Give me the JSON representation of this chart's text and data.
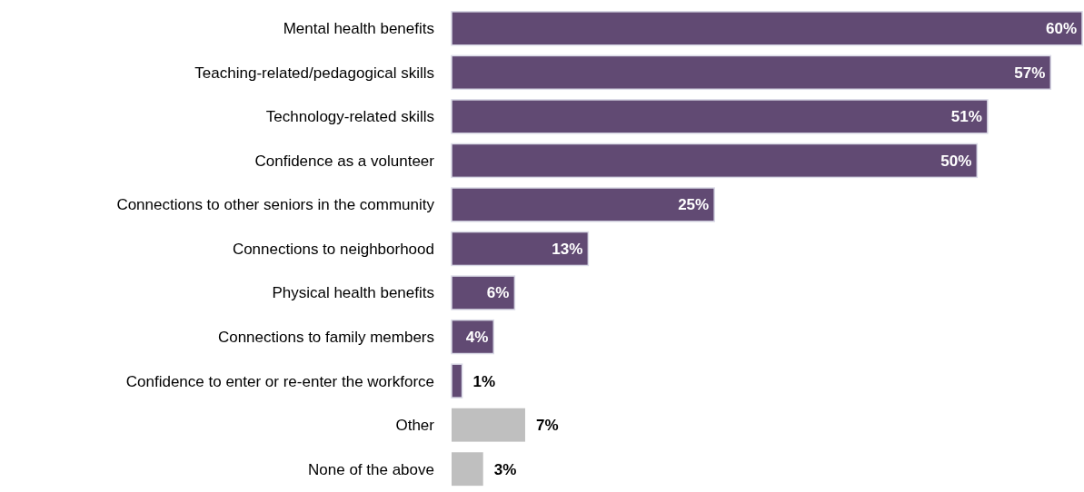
{
  "chart_data": {
    "type": "bar",
    "orientation": "horizontal",
    "categories": [
      "Mental health benefits",
      "Teaching-related/pedagogical skills",
      "Technology-related skills",
      "Confidence as a volunteer",
      "Connections to other seniors in the community",
      "Connections to neighborhood",
      "Physical health benefits",
      "Connections to family members",
      "Confidence to enter or re-enter the workforce",
      "Other",
      "None of the above"
    ],
    "values": [
      60,
      57,
      51,
      50,
      25,
      13,
      6,
      4,
      1,
      7,
      3
    ],
    "value_labels": [
      "60%",
      "57%",
      "51%",
      "50%",
      "25%",
      "13%",
      "6%",
      "4%",
      "1%",
      "7%",
      "3%"
    ],
    "colors": [
      "#614a73",
      "#614a73",
      "#614a73",
      "#614a73",
      "#614a73",
      "#614a73",
      "#614a73",
      "#614a73",
      "#614a73",
      "#bfbfbf",
      "#bfbfbf"
    ]
  }
}
